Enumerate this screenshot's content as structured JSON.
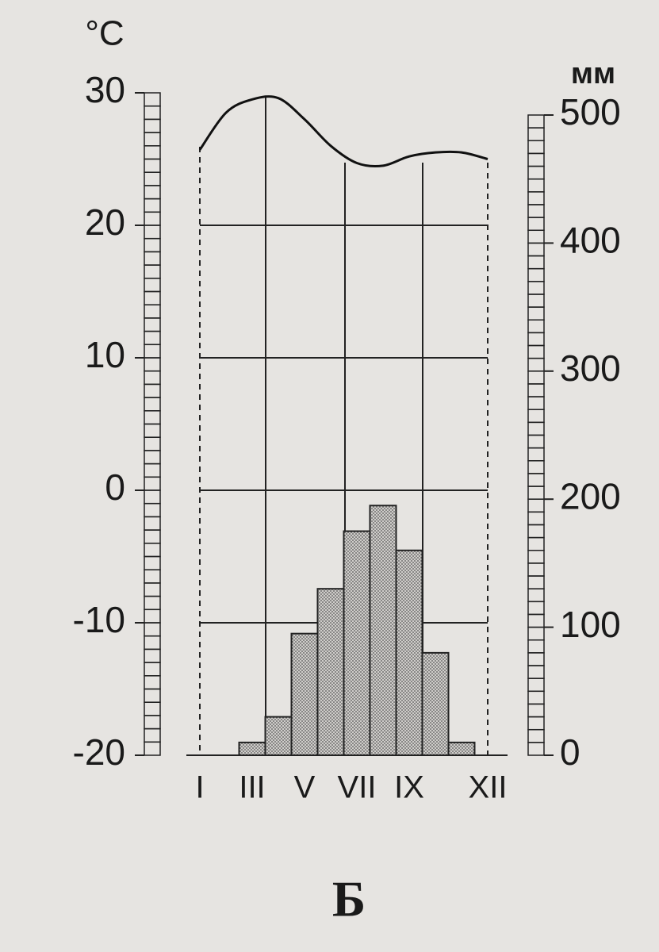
{
  "chart_data": {
    "type": "combo",
    "categories": [
      "I",
      null,
      "III",
      null,
      "V",
      null,
      "VII",
      null,
      "IX",
      null,
      null,
      "XII"
    ],
    "y_label": "°C",
    "y2_label": "мм",
    "caption": "Б",
    "ylim": [
      -20,
      30
    ],
    "yticks": [
      -20,
      -10,
      0,
      10,
      20,
      30
    ],
    "y2lim": [
      0,
      500
    ],
    "y2ticks": [
      0,
      100,
      200,
      300,
      400,
      500
    ],
    "grid": true,
    "series": [
      {
        "type": "line",
        "axis": "y",
        "color": "#111111",
        "values": [
          25.7,
          28.5,
          29.5,
          29.6,
          28,
          26,
          24.7,
          24.5,
          25.2,
          25.5,
          25.5,
          25
        ]
      },
      {
        "type": "bar",
        "axis": "y2",
        "color": "#b8b6b3",
        "values": [
          0,
          0,
          10,
          30,
          95,
          130,
          175,
          195,
          160,
          80,
          10,
          0
        ]
      }
    ]
  }
}
